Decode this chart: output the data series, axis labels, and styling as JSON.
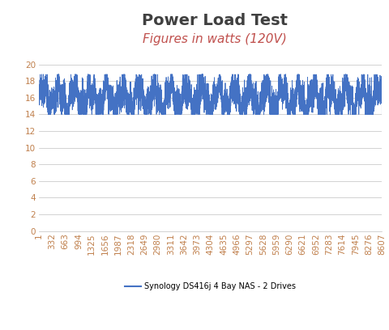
{
  "title": "Power Load Test",
  "subtitle": "Figures in watts (120V)",
  "title_color": "#404040",
  "subtitle_color": "#C0504D",
  "title_fontsize": 14,
  "subtitle_fontsize": 11,
  "line_color": "#4472C4",
  "line_width": 0.6,
  "ylim": [
    0,
    21
  ],
  "yticks": [
    0,
    2,
    4,
    6,
    8,
    10,
    12,
    14,
    16,
    18,
    20
  ],
  "xtick_labels": [
    "1",
    "332",
    "663",
    "994",
    "1325",
    "1656",
    "1987",
    "2318",
    "2649",
    "2980",
    "3311",
    "3642",
    "3973",
    "4304",
    "4635",
    "4966",
    "5297",
    "5628",
    "5959",
    "6290",
    "6621",
    "6952",
    "7283",
    "7614",
    "7945",
    "8276",
    "8607"
  ],
  "legend_label": "Synology DS416j 4 Bay NAS - 2 Drives",
  "legend_color": "#4472C4",
  "data_min": 14.0,
  "data_max": 18.5,
  "data_mean": 16.0,
  "n_points": 8607,
  "background_color": "#ffffff",
  "grid_color": "#C0C0C0",
  "tick_color": "#C0804D",
  "tick_fontsize": 7.5
}
